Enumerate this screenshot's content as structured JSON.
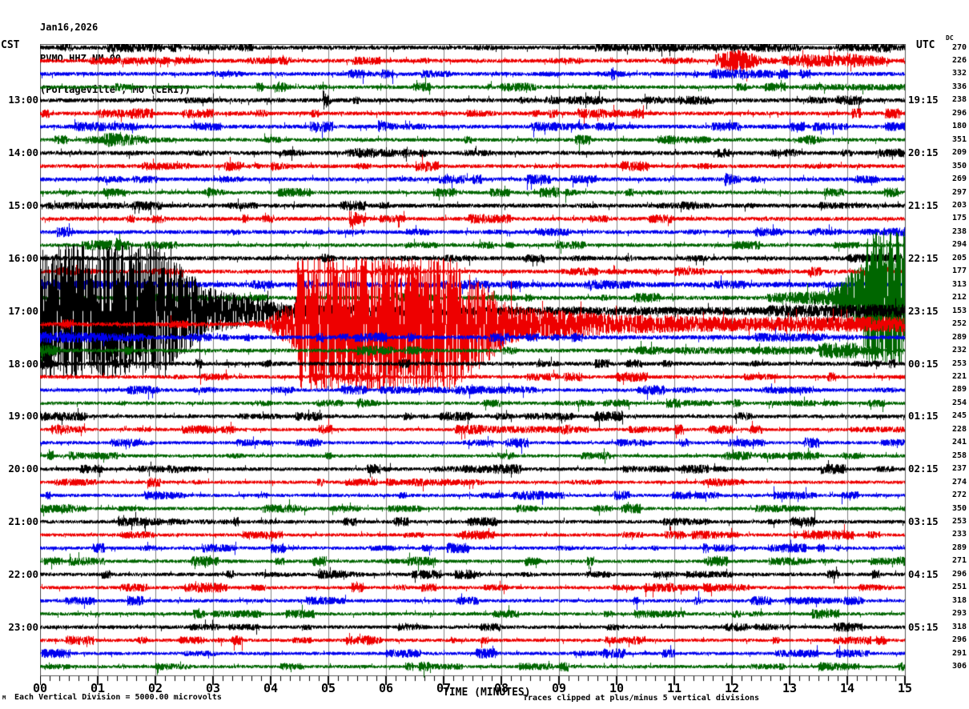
{
  "header": {
    "date": "Jan16,2026",
    "station": "PVMO HHZ NM 00",
    "location": "(Portageville , MO (CERI))",
    "left_tz": "CST",
    "right_tz": "UTC",
    "dc_label": "DC"
  },
  "footer": {
    "left_note": "Each Vertical Division = 5000.00 microvolts",
    "axis_label": "TIME (MINUTES)",
    "right_note": "Traces clipped at plus/minus 5 vertical divisions",
    "corner_mark": "M"
  },
  "chart_data": {
    "type": "line",
    "subtype": "helicorder-seismogram",
    "title": "PVMO HHZ NM 00 (Portageville , MO (CERI)) Jan16,2026",
    "xlabel": "TIME (MINUTES)",
    "x_range_minutes": [
      0,
      15
    ],
    "x_ticks": [
      "00",
      "01",
      "02",
      "03",
      "04",
      "05",
      "06",
      "07",
      "08",
      "09",
      "10",
      "11",
      "12",
      "13",
      "14",
      "15"
    ],
    "minor_ticks_per_minute": 6,
    "rows_per_hour": 4,
    "clip_divisions": 5,
    "grid": true,
    "colors": {
      "black": "#000000",
      "red": "#ee0000",
      "blue": "#0000ee",
      "green": "#006600",
      "grid": "#808080",
      "border": "#555555"
    },
    "row_color_cycle": [
      "black",
      "red",
      "blue",
      "green"
    ],
    "left_labels": [
      {
        "row": 4,
        "text": "13:00"
      },
      {
        "row": 8,
        "text": "14:00"
      },
      {
        "row": 12,
        "text": "15:00"
      },
      {
        "row": 16,
        "text": "16:00"
      },
      {
        "row": 20,
        "text": "17:00"
      },
      {
        "row": 24,
        "text": "18:00"
      },
      {
        "row": 28,
        "text": "19:00"
      },
      {
        "row": 32,
        "text": "20:00"
      },
      {
        "row": 36,
        "text": "21:00"
      },
      {
        "row": 40,
        "text": "22:00"
      },
      {
        "row": 44,
        "text": "23:00"
      }
    ],
    "right_labels": [
      {
        "row": 4,
        "text": "19:15"
      },
      {
        "row": 8,
        "text": "20:15"
      },
      {
        "row": 12,
        "text": "21:15"
      },
      {
        "row": 16,
        "text": "22:15"
      },
      {
        "row": 20,
        "text": "23:15"
      },
      {
        "row": 24,
        "text": "00:15"
      },
      {
        "row": 28,
        "text": "01:15"
      },
      {
        "row": 32,
        "text": "02:15"
      },
      {
        "row": 36,
        "text": "03:15"
      },
      {
        "row": 40,
        "text": "04:15"
      },
      {
        "row": 44,
        "text": "05:15"
      }
    ],
    "rows": [
      {
        "color": "black",
        "dc": 270,
        "noise": 0.16,
        "bursts": [
          [
            9.8,
            12.3,
            0.3,
            0.25
          ],
          [
            13.8,
            15,
            0.3,
            0.25
          ],
          [
            2.6,
            3.7,
            0.25,
            0.2
          ]
        ]
      },
      {
        "color": "red",
        "dc": 226,
        "noise": 0.15,
        "bursts": [
          [
            11.7,
            12.1,
            0.5,
            0.9
          ],
          [
            12.1,
            12.5,
            0.9,
            0.35
          ],
          [
            13.2,
            14.0,
            0.5,
            0.4
          ],
          [
            14.0,
            14.6,
            0.6,
            0.35
          ],
          [
            1.0,
            1.9,
            0.3,
            0.25
          ]
        ]
      },
      {
        "color": "blue",
        "dc": 332,
        "noise": 0.15,
        "bursts": [
          [
            11.6,
            12.7,
            0.4,
            0.3
          ],
          [
            9.9,
            10.05,
            0.6,
            0.2
          ],
          [
            6.6,
            7.1,
            0.3,
            0.25
          ]
        ]
      },
      {
        "color": "green",
        "dc": 336,
        "noise": 0.14,
        "bursts": [
          [
            13.2,
            15,
            0.25,
            0.25
          ],
          [
            1.3,
            1.6,
            0.35,
            0.2
          ]
        ]
      },
      {
        "color": "black",
        "dc": 238,
        "noise": 0.16,
        "bursts": [
          [
            4.9,
            5.05,
            0.8,
            0.2
          ],
          [
            8.3,
            8.6,
            0.3,
            0.2
          ],
          [
            10.5,
            11.1,
            0.3,
            0.2
          ],
          [
            13.3,
            13.8,
            0.3,
            0.2
          ]
        ]
      },
      {
        "color": "red",
        "dc": 296,
        "noise": 0.15,
        "bursts": [
          [
            1.0,
            1.9,
            0.35,
            0.25
          ],
          [
            7.4,
            7.9,
            0.3,
            0.2
          ]
        ]
      },
      {
        "color": "blue",
        "dc": 180,
        "noise": 0.15,
        "bursts": [
          [
            5.85,
            6.2,
            0.5,
            0.25
          ],
          [
            13.4,
            14.0,
            0.35,
            0.25
          ]
        ]
      },
      {
        "color": "green",
        "dc": 351,
        "noise": 0.14,
        "bursts": [
          [
            1.1,
            1.9,
            0.6,
            0.3
          ],
          [
            10.8,
            11.3,
            0.35,
            0.2
          ]
        ]
      },
      {
        "color": "black",
        "dc": 209,
        "noise": 0.16,
        "bursts": [
          [
            6.3,
            6.5,
            0.4,
            0.2
          ],
          [
            12.9,
            13.2,
            0.3,
            0.2
          ]
        ]
      },
      {
        "color": "red",
        "dc": 350,
        "noise": 0.15,
        "bursts": [
          [
            1.8,
            2.4,
            0.35,
            0.25
          ],
          [
            4.0,
            4.35,
            0.4,
            0.2
          ]
        ]
      },
      {
        "color": "blue",
        "dc": 269,
        "noise": 0.15,
        "bursts": [
          [
            11.85,
            12.15,
            0.55,
            0.25
          ],
          [
            3.1,
            3.5,
            0.3,
            0.2
          ]
        ]
      },
      {
        "color": "green",
        "dc": 297,
        "noise": 0.14,
        "bursts": [
          [
            2.9,
            3.2,
            0.4,
            0.2
          ],
          [
            9.1,
            9.3,
            0.35,
            0.2
          ]
        ]
      },
      {
        "color": "black",
        "dc": 203,
        "noise": 0.16,
        "bursts": [
          [
            13.5,
            14.2,
            0.3,
            0.2
          ],
          [
            5.2,
            5.5,
            0.3,
            0.2
          ]
        ]
      },
      {
        "color": "red",
        "dc": 175,
        "noise": 0.15,
        "bursts": [
          [
            5.35,
            5.65,
            0.7,
            0.25
          ],
          [
            10.6,
            11.0,
            0.3,
            0.2
          ]
        ]
      },
      {
        "color": "blue",
        "dc": 238,
        "noise": 0.15,
        "bursts": [
          [
            12.4,
            12.9,
            0.4,
            0.25
          ]
        ]
      },
      {
        "color": "green",
        "dc": 294,
        "noise": 0.14,
        "bursts": [
          [
            1.3,
            1.6,
            0.6,
            0.25
          ],
          [
            12.0,
            12.4,
            0.35,
            0.2
          ]
        ]
      },
      {
        "color": "black",
        "dc": 205,
        "noise": 0.16,
        "bursts": [
          [
            7.0,
            7.5,
            0.3,
            0.2
          ],
          [
            14.0,
            15,
            0.35,
            0.3
          ]
        ]
      },
      {
        "color": "red",
        "dc": 177,
        "noise": 0.15,
        "bursts": [
          [
            0.3,
            0.7,
            0.35,
            0.25
          ],
          [
            11.0,
            11.5,
            0.35,
            0.25
          ]
        ]
      },
      {
        "color": "blue",
        "dc": 313,
        "noise": 0.2,
        "bursts": [
          [
            0,
            2.0,
            0.4,
            0.3
          ],
          [
            7.3,
            7.8,
            0.4,
            0.3
          ],
          [
            9.5,
            10.3,
            0.4,
            0.3
          ]
        ]
      },
      {
        "color": "green",
        "dc": 212,
        "noise": 0.16,
        "bursts": [
          [
            12.6,
            13.7,
            0.35,
            0.6
          ],
          [
            13.7,
            14.3,
            0.7,
            2.8
          ],
          [
            14.3,
            15,
            5.2,
            5.2
          ]
        ]
      },
      {
        "color": "black",
        "dc": 153,
        "noise": 0.16,
        "bursts": [
          [
            0,
            2.1,
            5.2,
            5.2
          ],
          [
            2.1,
            2.9,
            4.8,
            1.8
          ],
          [
            2.9,
            4.2,
            1.8,
            0.65
          ],
          [
            4.2,
            6.5,
            0.55,
            0.4
          ],
          [
            6.5,
            12.6,
            0.32,
            0.32
          ],
          [
            12.6,
            15,
            0.45,
            0.55
          ]
        ]
      },
      {
        "color": "red",
        "dc": 252,
        "noise": 0.16,
        "bursts": [
          [
            3.9,
            4.45,
            0.3,
            2.2
          ],
          [
            4.45,
            7.15,
            5.2,
            5.2
          ],
          [
            7.15,
            8.2,
            5.0,
            1.4
          ],
          [
            8.2,
            10.0,
            1.4,
            0.75
          ],
          [
            10.0,
            12.5,
            0.75,
            0.5
          ],
          [
            12.5,
            15,
            0.55,
            0.6
          ]
        ]
      },
      {
        "color": "blue",
        "dc": 289,
        "noise": 0.16,
        "bursts": [
          [
            0,
            1.8,
            0.45,
            0.3
          ],
          [
            12.4,
            13.6,
            0.35,
            0.3
          ]
        ]
      },
      {
        "color": "green",
        "dc": 232,
        "noise": 0.15,
        "bursts": [
          [
            0,
            0.35,
            0.55,
            0.3
          ],
          [
            10.5,
            13.4,
            0.25,
            0.3
          ],
          [
            13.5,
            14.15,
            0.6,
            0.6
          ],
          [
            14.15,
            14.6,
            0.4,
            0.25
          ]
        ]
      },
      {
        "color": "black",
        "dc": 253,
        "noise": 0.15,
        "bursts": [
          [
            0,
            0.3,
            0.4,
            0.25
          ],
          [
            8.6,
            9.0,
            0.3,
            0.2
          ]
        ]
      },
      {
        "color": "red",
        "dc": 221,
        "noise": 0.14,
        "bursts": [
          [
            4.7,
            4.95,
            0.45,
            0.2
          ],
          [
            12.2,
            12.8,
            0.3,
            0.2
          ]
        ]
      },
      {
        "color": "blue",
        "dc": 289,
        "noise": 0.14,
        "bursts": [
          [
            5.9,
            7.1,
            0.3,
            0.25
          ],
          [
            7.2,
            8.6,
            0.35,
            0.25
          ],
          [
            12.7,
            13.4,
            0.3,
            0.25
          ]
        ]
      },
      {
        "color": "green",
        "dc": 254,
        "noise": 0.13,
        "bursts": [
          [
            5.5,
            5.9,
            0.4,
            0.2
          ],
          [
            9.3,
            9.6,
            0.3,
            0.2
          ]
        ]
      },
      {
        "color": "black",
        "dc": 245,
        "noise": 0.14,
        "bursts": [
          [
            0,
            0.35,
            0.4,
            0.2
          ],
          [
            7.9,
            8.2,
            0.3,
            0.2
          ]
        ]
      },
      {
        "color": "red",
        "dc": 228,
        "noise": 0.13,
        "bursts": [
          [
            7.5,
            9.5,
            0.3,
            0.25
          ],
          [
            10.2,
            10.9,
            0.3,
            0.2
          ]
        ]
      },
      {
        "color": "blue",
        "dc": 241,
        "noise": 0.13,
        "bursts": [
          [
            3.4,
            3.9,
            0.3,
            0.2
          ],
          [
            10.0,
            10.6,
            0.3,
            0.2
          ]
        ]
      },
      {
        "color": "green",
        "dc": 258,
        "noise": 0.13,
        "bursts": [
          [
            0.5,
            1.0,
            0.35,
            0.2
          ],
          [
            13.9,
            14.3,
            0.3,
            0.2
          ]
        ]
      },
      {
        "color": "black",
        "dc": 237,
        "noise": 0.14,
        "bursts": [
          [
            10.1,
            10.5,
            0.3,
            0.2
          ],
          [
            2.3,
            2.8,
            0.25,
            0.2
          ]
        ]
      },
      {
        "color": "red",
        "dc": 274,
        "noise": 0.13,
        "bursts": [
          [
            6.0,
            6.5,
            0.3,
            0.2
          ],
          [
            11.5,
            12.2,
            0.3,
            0.25
          ]
        ]
      },
      {
        "color": "blue",
        "dc": 272,
        "noise": 0.13,
        "bursts": [
          [
            1.8,
            2.5,
            0.35,
            0.25
          ],
          [
            8.2,
            8.7,
            0.3,
            0.2
          ]
        ]
      },
      {
        "color": "green",
        "dc": 350,
        "noise": 0.13,
        "bursts": [
          [
            0,
            0.8,
            0.35,
            0.25
          ],
          [
            12.8,
            13.3,
            0.3,
            0.2
          ]
        ]
      },
      {
        "color": "black",
        "dc": 253,
        "noise": 0.14,
        "bursts": [
          [
            2.2,
            2.6,
            0.3,
            0.2
          ],
          [
            10.8,
            11.6,
            0.3,
            0.25
          ]
        ]
      },
      {
        "color": "red",
        "dc": 233,
        "noise": 0.13,
        "bursts": [
          [
            3.5,
            4.1,
            0.3,
            0.25
          ],
          [
            11.3,
            12.1,
            0.35,
            0.25
          ]
        ]
      },
      {
        "color": "blue",
        "dc": 289,
        "noise": 0.13,
        "bursts": [
          [
            2.8,
            3.4,
            0.35,
            0.25
          ],
          [
            12.6,
            13.1,
            0.3,
            0.2
          ]
        ]
      },
      {
        "color": "green",
        "dc": 271,
        "noise": 0.13,
        "bursts": [
          [
            0.5,
            1.1,
            0.35,
            0.25
          ],
          [
            8.4,
            8.7,
            0.4,
            0.2
          ],
          [
            14.4,
            15,
            0.3,
            0.25
          ]
        ]
      },
      {
        "color": "black",
        "dc": 296,
        "noise": 0.14,
        "bursts": [
          [
            5.0,
            5.6,
            0.3,
            0.2
          ],
          [
            11.2,
            11.9,
            0.3,
            0.25
          ]
        ]
      },
      {
        "color": "red",
        "dc": 251,
        "noise": 0.13,
        "bursts": [
          [
            2.5,
            3.2,
            0.35,
            0.25
          ],
          [
            11.5,
            12.3,
            0.35,
            0.25
          ],
          [
            14.2,
            14.8,
            0.3,
            0.2
          ]
        ]
      },
      {
        "color": "blue",
        "dc": 318,
        "noise": 0.13,
        "bursts": [
          [
            4.6,
            5.3,
            0.35,
            0.25
          ],
          [
            13.3,
            13.9,
            0.3,
            0.2
          ]
        ]
      },
      {
        "color": "green",
        "dc": 293,
        "noise": 0.13,
        "bursts": [
          [
            3.0,
            3.6,
            0.3,
            0.2
          ],
          [
            10.3,
            10.9,
            0.35,
            0.25
          ]
        ]
      },
      {
        "color": "black",
        "dc": 318,
        "noise": 0.14,
        "bursts": [
          [
            6.2,
            6.7,
            0.3,
            0.2
          ],
          [
            12.4,
            13.0,
            0.3,
            0.2
          ]
        ]
      },
      {
        "color": "red",
        "dc": 296,
        "noise": 0.13,
        "bursts": [
          [
            5.3,
            5.7,
            0.4,
            0.2
          ],
          [
            9.8,
            10.4,
            0.3,
            0.2
          ]
        ]
      },
      {
        "color": "blue",
        "dc": 291,
        "noise": 0.13,
        "bursts": [
          [
            6.0,
            6.6,
            0.3,
            0.25
          ],
          [
            13.8,
            14.4,
            0.35,
            0.25
          ]
        ]
      },
      {
        "color": "green",
        "dc": 306,
        "noise": 0.13,
        "bursts": [
          [
            2.0,
            2.6,
            0.3,
            0.2
          ],
          [
            8.3,
            8.9,
            0.3,
            0.25
          ],
          [
            13.5,
            14.2,
            0.35,
            0.25
          ]
        ]
      }
    ]
  }
}
